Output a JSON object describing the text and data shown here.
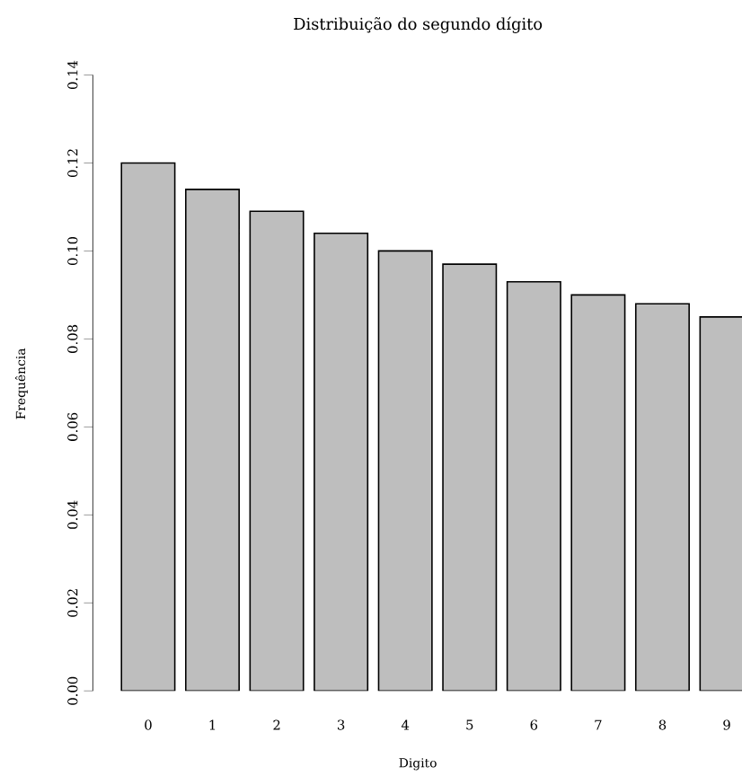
{
  "chart_data": {
    "type": "bar",
    "title": "Distribuição do segundo dígito",
    "xlabel": "Digito",
    "ylabel": "Frequência",
    "categories": [
      "0",
      "1",
      "2",
      "3",
      "4",
      "5",
      "6",
      "7",
      "8",
      "9"
    ],
    "values": [
      0.12,
      0.114,
      0.109,
      0.104,
      0.1,
      0.097,
      0.093,
      0.09,
      0.088,
      0.085
    ],
    "color": "#bebebe",
    "ylim": [
      0,
      0.14
    ],
    "yticks": [
      {
        "value": 0,
        "label": "0.00"
      },
      {
        "value": 0.02,
        "label": "0.02"
      },
      {
        "value": 0.04,
        "label": "0.04"
      },
      {
        "value": 0.06,
        "label": "0.06"
      },
      {
        "value": 0.08,
        "label": "0.08"
      },
      {
        "value": 0.1,
        "label": "0.10"
      },
      {
        "value": 0.12,
        "label": "0.12"
      },
      {
        "value": 0.14,
        "label": "0.14"
      }
    ]
  }
}
